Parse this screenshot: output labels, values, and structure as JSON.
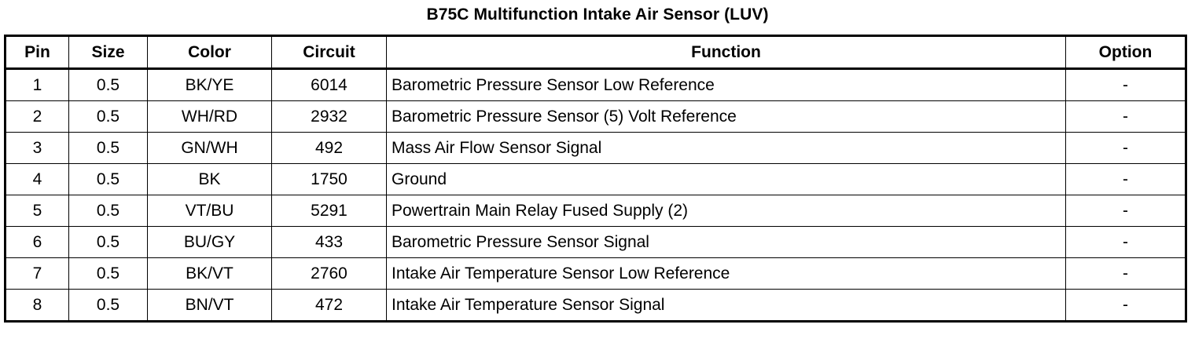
{
  "title": "B75C Multifunction Intake Air Sensor (LUV)",
  "columns": [
    "Pin",
    "Size",
    "Color",
    "Circuit",
    "Function",
    "Option"
  ],
  "rows": [
    {
      "pin": "1",
      "size": "0.5",
      "color": "BK/YE",
      "circuit": "6014",
      "function": "Barometric Pressure Sensor Low Reference",
      "option": "-"
    },
    {
      "pin": "2",
      "size": "0.5",
      "color": "WH/RD",
      "circuit": "2932",
      "function": "Barometric Pressure Sensor (5) Volt Reference",
      "option": "-"
    },
    {
      "pin": "3",
      "size": "0.5",
      "color": "GN/WH",
      "circuit": "492",
      "function": "Mass Air Flow Sensor Signal",
      "option": "-"
    },
    {
      "pin": "4",
      "size": "0.5",
      "color": "BK",
      "circuit": "1750",
      "function": "Ground",
      "option": "-"
    },
    {
      "pin": "5",
      "size": "0.5",
      "color": "VT/BU",
      "circuit": "5291",
      "function": "Powertrain Main Relay Fused Supply (2)",
      "option": "-"
    },
    {
      "pin": "6",
      "size": "0.5",
      "color": "BU/GY",
      "circuit": "433",
      "function": "Barometric Pressure Sensor Signal",
      "option": "-"
    },
    {
      "pin": "7",
      "size": "0.5",
      "color": "BK/VT",
      "circuit": "2760",
      "function": "Intake Air Temperature Sensor Low Reference",
      "option": "-"
    },
    {
      "pin": "8",
      "size": "0.5",
      "color": "BN/VT",
      "circuit": "472",
      "function": "Intake Air Temperature Sensor Signal",
      "option": "-"
    }
  ]
}
